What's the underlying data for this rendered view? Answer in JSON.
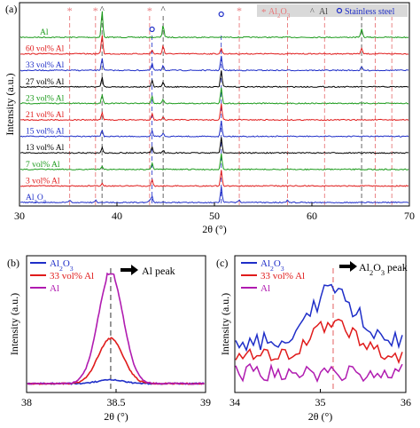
{
  "chart_data": [
    {
      "panel": "(a)",
      "type": "line",
      "xlabel": "2θ (°)",
      "ylabel": "Intensity (a.u.)",
      "xlim": [
        30,
        70
      ],
      "xticks": [
        30,
        40,
        50,
        60,
        70
      ],
      "legend": {
        "position": "top-right",
        "entries": [
          {
            "symbol": "*",
            "label_main": "Al",
            "label_sub": "2",
            "label_main2": "O",
            "label_sub2": "3",
            "color": "#e8787a"
          },
          {
            "symbol": "^",
            "label_main": "Al",
            "color": "#555555"
          },
          {
            "symbol": "o",
            "label_main": "Stainless steel",
            "color": "#1f2ec8"
          }
        ]
      },
      "peak_markers": {
        "al2o3_star": [
          35.15,
          37.8,
          43.35,
          52.55,
          57.5,
          61.3,
          66.5,
          68.2
        ],
        "al_caret": [
          38.47,
          44.74,
          65.1
        ],
        "steel_circle": [
          43.6,
          50.7
        ]
      },
      "series": [
        {
          "name": "Al",
          "color": "#1a9a1a",
          "peaks": [
            [
              38.47,
              30
            ],
            [
              44.74,
              14
            ],
            [
              65.1,
              10
            ]
          ]
        },
        {
          "name": "60 vol% Al",
          "color": "#e01b1b",
          "peaks": [
            [
              38.47,
              22
            ],
            [
              44.74,
              9
            ],
            [
              43.6,
              4
            ],
            [
              50.7,
              6
            ],
            [
              65.1,
              6
            ]
          ]
        },
        {
          "name": "33 vol% Al",
          "color": "#1f2ec8",
          "peaks": [
            [
              38.47,
              14
            ],
            [
              43.6,
              8
            ],
            [
              44.74,
              6
            ],
            [
              50.7,
              16
            ],
            [
              65.1,
              4
            ]
          ]
        },
        {
          "name": "27 vol% Al",
          "color": "#000000",
          "peaks": [
            [
              38.47,
              11
            ],
            [
              43.6,
              7
            ],
            [
              44.74,
              5
            ],
            [
              50.7,
              19
            ]
          ]
        },
        {
          "name": "23 vol% Al",
          "color": "#1a9a1a",
          "peaks": [
            [
              38.47,
              10
            ],
            [
              43.6,
              8
            ],
            [
              44.74,
              5
            ],
            [
              50.7,
              18
            ]
          ]
        },
        {
          "name": "21 vol% Al",
          "color": "#e01b1b",
          "peaks": [
            [
              38.47,
              8
            ],
            [
              43.6,
              7
            ],
            [
              44.74,
              4
            ],
            [
              50.7,
              18
            ]
          ]
        },
        {
          "name": "15 vol% Al",
          "color": "#1f2ec8",
          "peaks": [
            [
              38.47,
              7
            ],
            [
              43.6,
              7
            ],
            [
              44.74,
              4
            ],
            [
              50.7,
              18
            ]
          ]
        },
        {
          "name": "13 vol% Al",
          "color": "#000000",
          "peaks": [
            [
              38.47,
              6
            ],
            [
              43.6,
              7
            ],
            [
              44.74,
              3
            ],
            [
              50.7,
              18
            ]
          ]
        },
        {
          "name": "7 vol% Al",
          "color": "#1a9a1a",
          "peaks": [
            [
              38.47,
              4
            ],
            [
              43.6,
              7
            ],
            [
              50.7,
              18
            ]
          ]
        },
        {
          "name": "3 vol% Al",
          "color": "#e01b1b",
          "peaks": [
            [
              38.47,
              3
            ],
            [
              43.6,
              7
            ],
            [
              50.7,
              18
            ]
          ]
        },
        {
          "name": "Al2O3",
          "color": "#1f2ec8",
          "label_main": "Al",
          "label_sub": "2",
          "label_main2": "O",
          "label_sub2": "3",
          "peaks": [
            [
              43.6,
              7
            ],
            [
              50.7,
              18
            ]
          ]
        }
      ]
    },
    {
      "panel": "(b)",
      "type": "line",
      "xlabel": "2θ (°)",
      "ylabel": "Intensity (a.u.)",
      "xlim": [
        38,
        39
      ],
      "xticks": [
        "38",
        "38.5",
        "39"
      ],
      "annotation": "Al peak",
      "marker_x": 38.47,
      "legend": {
        "position": "top-left"
      },
      "series": [
        {
          "name": "Al2O3",
          "label_main": "Al",
          "label_sub": "2",
          "label_main2": "O",
          "label_sub2": "3",
          "color": "#1f2ec8",
          "peak_height": 0.03
        },
        {
          "name": "33 vol% Al",
          "color": "#e01b1b",
          "peak_height": 0.38
        },
        {
          "name": "Al",
          "color": "#b01bb0",
          "peak_height": 0.92
        }
      ]
    },
    {
      "panel": "(c)",
      "type": "line",
      "xlabel": "2θ (°)",
      "ylabel": "Intensity (a.u.)",
      "xlim": [
        34,
        36
      ],
      "xticks": [
        "34",
        "35",
        "36"
      ],
      "annotation": "Al2O3 peak",
      "annotation_main": "Al",
      "annotation_sub": "2",
      "annotation_main2": "O",
      "annotation_sub2": "3",
      "annotation_tail": " peak",
      "marker_x": 35.15,
      "legend": {
        "position": "top-left"
      },
      "series": [
        {
          "name": "Al2O3",
          "label_main": "Al",
          "label_sub": "2",
          "label_main2": "O",
          "label_sub2": "3",
          "color": "#1f2ec8",
          "level": 0.6
        },
        {
          "name": "33 vol% Al",
          "color": "#e01b1b",
          "level": 0.38
        },
        {
          "name": "Al",
          "color": "#b01bb0",
          "level": 0.1
        }
      ]
    }
  ]
}
